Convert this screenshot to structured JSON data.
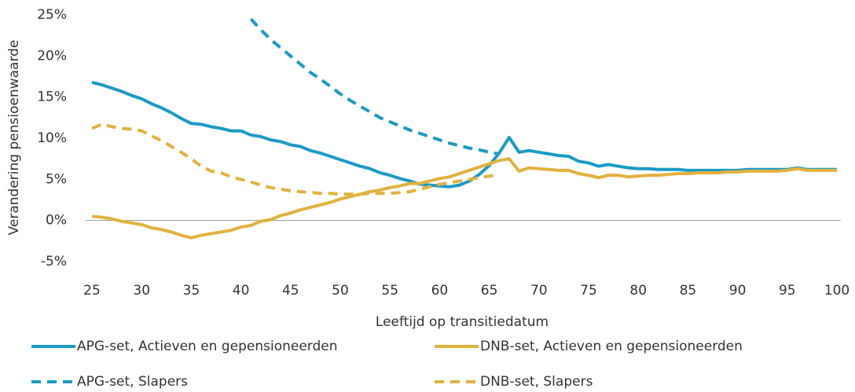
{
  "chart_data": {
    "type": "line",
    "xlabel": "Leeftijd op transitiedatum",
    "ylabel": "Verandering pensioenwaarde",
    "x": [
      25,
      26,
      27,
      28,
      29,
      30,
      31,
      32,
      33,
      34,
      35,
      36,
      37,
      38,
      39,
      40,
      41,
      42,
      43,
      44,
      45,
      46,
      47,
      48,
      49,
      50,
      51,
      52,
      53,
      54,
      55,
      56,
      57,
      58,
      59,
      60,
      61,
      62,
      63,
      64,
      65,
      66,
      67,
      68,
      69,
      70,
      71,
      72,
      73,
      74,
      75,
      76,
      77,
      78,
      79,
      80,
      81,
      82,
      83,
      84,
      85,
      86,
      87,
      88,
      89,
      90,
      91,
      92,
      93,
      94,
      95,
      96,
      97,
      98,
      99,
      100
    ],
    "xlim": [
      25,
      100
    ],
    "xticks": [
      25,
      30,
      35,
      40,
      45,
      50,
      55,
      60,
      65,
      70,
      75,
      80,
      85,
      90,
      95,
      100
    ],
    "ylim": [
      -5,
      25
    ],
    "yticks": [
      {
        "value": -5,
        "label": "-5%"
      },
      {
        "value": 0,
        "label": "0%"
      },
      {
        "value": 5,
        "label": "5%"
      },
      {
        "value": 10,
        "label": "10%"
      },
      {
        "value": 15,
        "label": "15%"
      },
      {
        "value": 20,
        "label": "20%"
      },
      {
        "value": 25,
        "label": "25%"
      }
    ],
    "grid": false,
    "legend": "bottom",
    "series": [
      {
        "name": "APG-set, Actieven en gepensioneerden",
        "color": "#1b9bc6",
        "linestyle": "solid",
        "values": [
          16.8,
          16.5,
          16.1,
          15.7,
          15.2,
          14.8,
          14.2,
          13.7,
          13.1,
          12.4,
          11.8,
          11.7,
          11.4,
          11.2,
          10.9,
          10.9,
          10.4,
          10.2,
          9.8,
          9.6,
          9.2,
          9.0,
          8.5,
          8.2,
          7.8,
          7.4,
          7.0,
          6.6,
          6.3,
          5.8,
          5.5,
          5.1,
          4.8,
          4.4,
          4.3,
          4.2,
          4.1,
          4.3,
          4.8,
          5.6,
          6.7,
          8.2,
          10.1,
          8.3,
          8.5,
          8.3,
          8.1,
          7.9,
          7.8,
          7.2,
          7.0,
          6.6,
          6.8,
          6.6,
          6.4,
          6.3,
          6.3,
          6.2,
          6.2,
          6.2,
          6.1,
          6.1,
          6.1,
          6.1,
          6.1,
          6.1,
          6.2,
          6.2,
          6.2,
          6.2,
          6.2,
          6.4,
          6.2,
          6.2,
          6.2,
          6.2
        ]
      },
      {
        "name": "DNB-set, Actieven en gepensioneerden",
        "color": "#e2b23f",
        "linestyle": "solid",
        "values": [
          0.5,
          0.4,
          0.2,
          -0.1,
          -0.3,
          -0.5,
          -0.9,
          -1.1,
          -1.4,
          -1.8,
          -2.1,
          -1.8,
          -1.6,
          -1.4,
          -1.2,
          -0.8,
          -0.6,
          -0.1,
          0.1,
          0.6,
          0.9,
          1.3,
          1.6,
          1.9,
          2.2,
          2.6,
          2.9,
          3.2,
          3.5,
          3.7,
          4.0,
          4.2,
          4.5,
          4.5,
          4.8,
          5.1,
          5.3,
          5.7,
          6.1,
          6.5,
          6.9,
          7.3,
          7.5,
          6.0,
          6.4,
          6.3,
          6.2,
          6.1,
          6.1,
          5.7,
          5.5,
          5.2,
          5.5,
          5.5,
          5.3,
          5.4,
          5.5,
          5.5,
          5.6,
          5.7,
          5.7,
          5.8,
          5.8,
          5.8,
          5.9,
          5.9,
          6.0,
          6.0,
          6.0,
          6.0,
          6.1,
          6.3,
          6.1,
          6.1,
          6.1,
          6.1
        ]
      },
      {
        "name": "APG-set, Slapers",
        "color": "#1b9bc6",
        "linestyle": "dashed",
        "values": [
          null,
          null,
          null,
          null,
          null,
          null,
          null,
          null,
          null,
          null,
          null,
          null,
          null,
          null,
          null,
          null,
          24.5,
          23.2,
          22.0,
          21.0,
          20.0,
          19.0,
          18.0,
          17.2,
          16.3,
          15.4,
          14.6,
          13.9,
          13.2,
          12.5,
          12.0,
          11.5,
          11.0,
          10.6,
          10.2,
          9.8,
          9.4,
          9.1,
          8.8,
          8.6,
          8.3,
          8.1,
          null,
          null,
          null,
          null,
          null,
          null,
          null,
          null,
          null,
          null,
          null,
          null,
          null,
          null,
          null,
          null,
          null,
          null,
          null,
          null,
          null,
          null,
          null,
          null,
          null,
          null,
          null,
          null,
          null,
          null,
          null,
          null,
          null,
          null
        ]
      },
      {
        "name": "DNB-set, Slapers",
        "color": "#e2b23f",
        "linestyle": "dashed",
        "values": [
          11.2,
          11.7,
          11.4,
          11.2,
          11.1,
          10.9,
          10.3,
          9.7,
          9.0,
          8.3,
          7.5,
          6.6,
          6.0,
          5.8,
          5.3,
          5.0,
          4.7,
          4.3,
          4.0,
          3.8,
          3.6,
          3.5,
          3.4,
          3.3,
          3.3,
          3.2,
          3.2,
          3.2,
          3.3,
          3.3,
          3.3,
          3.4,
          3.5,
          3.8,
          4.1,
          4.4,
          4.6,
          4.8,
          5.0,
          5.2,
          5.4,
          5.6,
          null,
          null,
          null,
          null,
          null,
          null,
          null,
          null,
          null,
          null,
          null,
          null,
          null,
          null,
          null,
          null,
          null,
          null,
          null,
          null,
          null,
          null,
          null,
          null,
          null,
          null,
          null,
          null,
          null,
          null,
          null,
          null,
          null,
          null
        ]
      }
    ]
  }
}
